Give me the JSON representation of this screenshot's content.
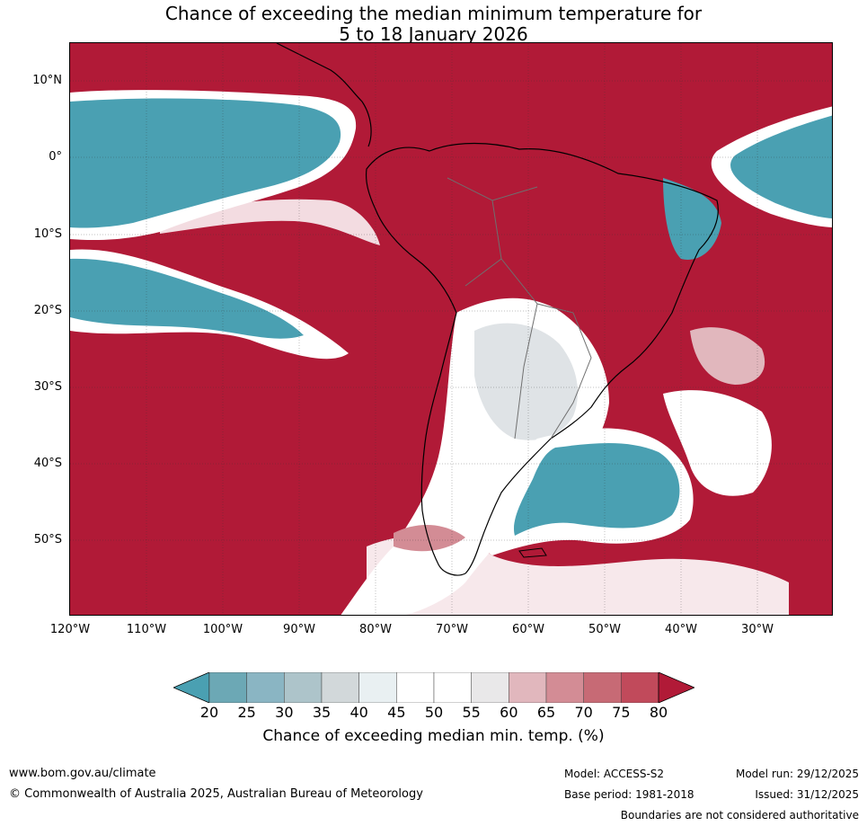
{
  "title": {
    "line1": "Chance of exceeding the median minimum temperature for",
    "line2": "5 to 18 January 2026"
  },
  "map": {
    "lat_labels": [
      "10°N",
      "0°",
      "10°S",
      "20°S",
      "30°S",
      "40°S",
      "50°S"
    ],
    "lon_labels": [
      "120°W",
      "110°W",
      "100°W",
      "90°W",
      "80°W",
      "70°W",
      "60°W",
      "50°W",
      "40°W",
      "30°W"
    ],
    "colors": {
      "very_high": "#b11a37",
      "high": "#c14a5b",
      "mid_high": "#d9969f",
      "neutral": "#ffffff",
      "light_grey": "#dfe3e6",
      "low": "#8ab5c3",
      "very_low": "#4aa0b2",
      "land_border": "#000000",
      "country_border": "#6f6f6f"
    }
  },
  "legend": {
    "ticks": [
      "20",
      "25",
      "30",
      "35",
      "40",
      "45",
      "50",
      "55",
      "60",
      "65",
      "70",
      "75",
      "80"
    ],
    "bin_colors": [
      "#4aa0b2",
      "#6ca8b5",
      "#8ab5c3",
      "#adc4ca",
      "#d2d8da",
      "#e9f0f2",
      "#ffffff",
      "#ffffff",
      "#e9e8e9",
      "#e1b7bd",
      "#d38c95",
      "#c76a75",
      "#c14a5b",
      "#b11a37"
    ],
    "label": "Chance of exceeding median min. temp. (%)"
  },
  "footer": {
    "url": "www.bom.gov.au/climate",
    "copyright": "© Commonwealth of Australia 2025, Australian Bureau of Meteorology",
    "model": "Model: ACCESS-S2",
    "base_period": "Base period: 1981-2018",
    "model_run": "Model run: 29/12/2025",
    "issued": "Issued: 31/12/2025",
    "disclaimer": "Boundaries are not considered authoritative"
  }
}
